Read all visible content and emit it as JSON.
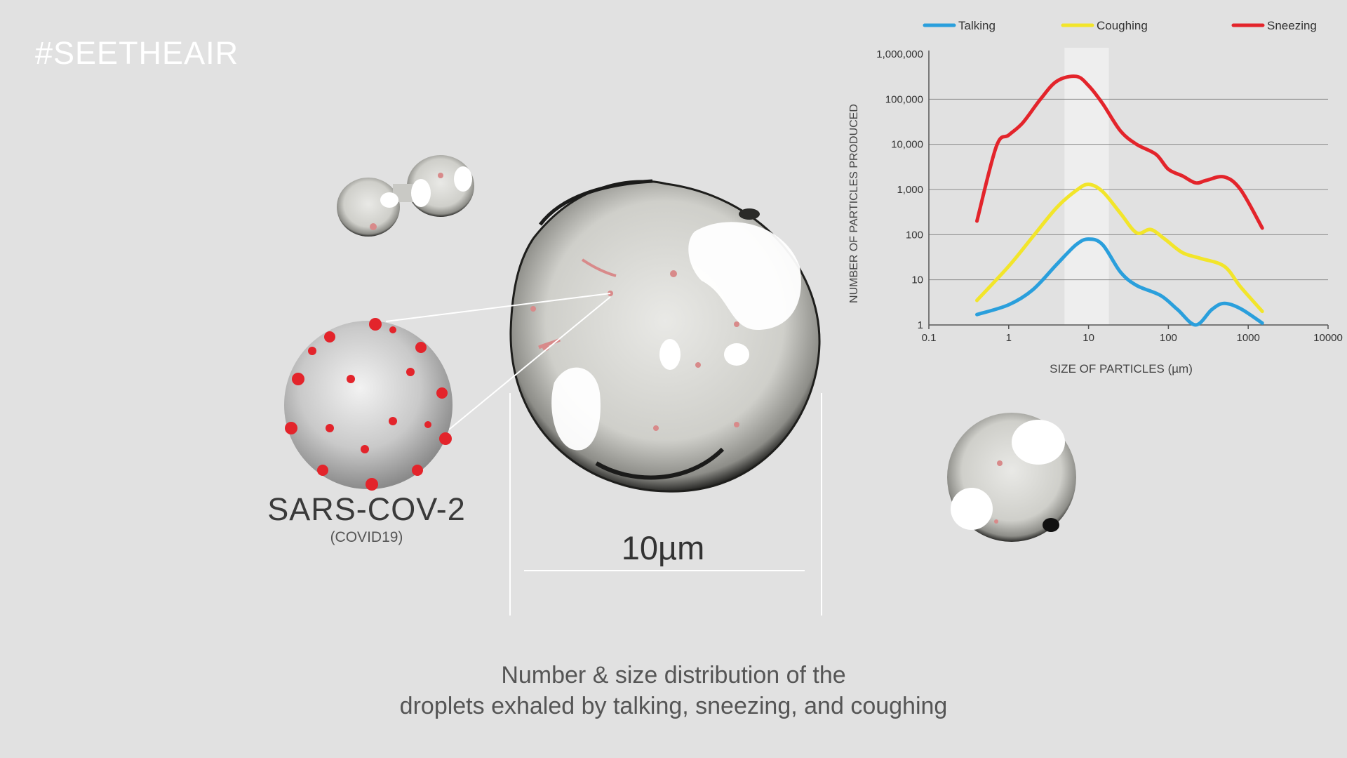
{
  "hashtag": "#SEETHEAIR",
  "virus": {
    "name": "SARS-COV-2",
    "subtitle": "(COVID19)"
  },
  "scale_label": "10µm",
  "caption": {
    "line1": "Number & size distribution of the",
    "line2": "droplets exhaled by talking, sneezing, and coughing"
  },
  "colors": {
    "background": "#e1e1e1",
    "talking": "#2a9fdc",
    "coughing": "#f2e52a",
    "sneezing": "#e3242b",
    "highlight_band": "#f1f1f1"
  },
  "chart_data": {
    "type": "line",
    "xlabel": "SIZE OF PARTICLES (µm)",
    "ylabel": "NUMBER OF PARTICLES PRODUCED",
    "xscale": "log",
    "yscale": "log",
    "xlim": [
      0.1,
      10000
    ],
    "ylim": [
      1,
      1000000
    ],
    "x_ticks": [
      "0.1",
      "1",
      "10",
      "100",
      "1000",
      "10000"
    ],
    "y_ticks": [
      "1",
      "10",
      "100",
      "1,000",
      "10,000",
      "100,000",
      "1,000,000"
    ],
    "legend_position": "top",
    "grid": "horizontal",
    "highlight_band_x": [
      5,
      18
    ],
    "series": [
      {
        "name": "Talking",
        "color": "#2a9fdc",
        "x": [
          0.4,
          1,
          2,
          4,
          7,
          10,
          15,
          25,
          40,
          80,
          130,
          220,
          350,
          500,
          800,
          1500
        ],
        "y": [
          1.7,
          2.8,
          6,
          22,
          60,
          80,
          60,
          15,
          7.5,
          4.5,
          2.2,
          1,
          2.2,
          3,
          2.3,
          1.1
        ]
      },
      {
        "name": "Coughing",
        "color": "#f2e52a",
        "x": [
          0.4,
          1,
          2,
          4,
          7,
          10,
          15,
          25,
          40,
          60,
          90,
          150,
          250,
          500,
          800,
          1500
        ],
        "y": [
          3.5,
          20,
          90,
          400,
          950,
          1300,
          900,
          300,
          110,
          130,
          80,
          40,
          30,
          20,
          7,
          2
        ]
      },
      {
        "name": "Sneezing",
        "color": "#e3242b",
        "x": [
          0.4,
          0.7,
          1,
          1.5,
          2.5,
          4,
          7,
          10,
          15,
          25,
          40,
          70,
          100,
          150,
          220,
          300,
          500,
          800,
          1500
        ],
        "y": [
          200,
          9000,
          16000,
          30000,
          100000,
          250000,
          320000,
          200000,
          80000,
          20000,
          10000,
          6000,
          2800,
          2000,
          1400,
          1600,
          1900,
          1000,
          140
        ]
      }
    ]
  }
}
